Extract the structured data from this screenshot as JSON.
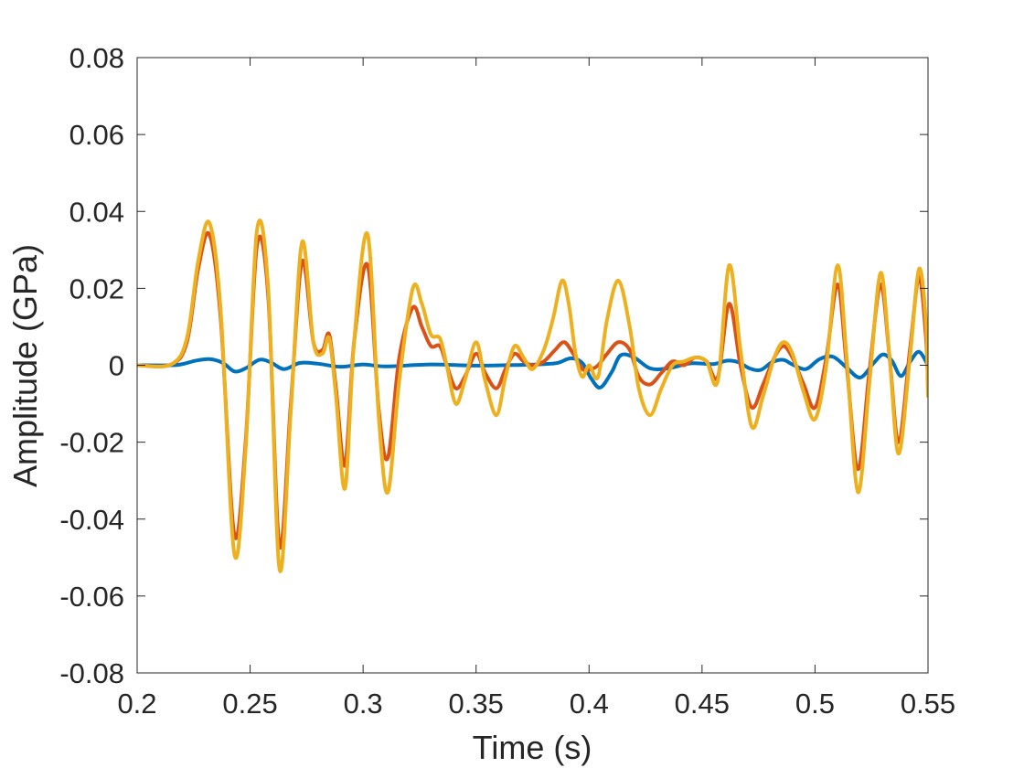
{
  "chart_data": {
    "type": "line",
    "title": "",
    "xlabel": "Time (s)",
    "ylabel": "Amplitude (GPa)",
    "xlim": [
      0.2,
      0.55
    ],
    "ylim": [
      -0.08,
      0.08
    ],
    "xticks": [
      0.2,
      0.25,
      0.3,
      0.35,
      0.4,
      0.45,
      0.5,
      0.55
    ],
    "xtick_labels": [
      "0.2",
      "0.25",
      "0.3",
      "0.35",
      "0.4",
      "0.45",
      "0.5",
      "0.55"
    ],
    "yticks": [
      -0.08,
      -0.06,
      -0.04,
      -0.02,
      0,
      0.02,
      0.04,
      0.06,
      0.08
    ],
    "ytick_labels": [
      "-0.08",
      "-0.06",
      "-0.04",
      "-0.02",
      "0",
      "0.02",
      "0.04",
      "0.06",
      "0.08"
    ],
    "grid": false,
    "legend": "none",
    "colors": [
      "#0072BD",
      "#D95319",
      "#EDB120"
    ],
    "series": [
      {
        "color": "#0072BD",
        "x": [
          0.2,
          0.215,
          0.22,
          0.226,
          0.232,
          0.238,
          0.243,
          0.248,
          0.254,
          0.259,
          0.265,
          0.272,
          0.28,
          0.29,
          0.3,
          0.31,
          0.33,
          0.35,
          0.37,
          0.38,
          0.386,
          0.392,
          0.397,
          0.401,
          0.405,
          0.41,
          0.414,
          0.42,
          0.427,
          0.435,
          0.445,
          0.455,
          0.461,
          0.466,
          0.471,
          0.476,
          0.481,
          0.486,
          0.49,
          0.496,
          0.502,
          0.508,
          0.514,
          0.52,
          0.526,
          0.53,
          0.534,
          0.538,
          0.542,
          0.546,
          0.55
        ],
        "y": [
          0,
          0,
          0.0003,
          0.0012,
          0.0016,
          0.0006,
          -0.0016,
          -0.0008,
          0.0014,
          0.0008,
          -0.001,
          0.0006,
          0.0004,
          -0.0004,
          0.0002,
          -0.0003,
          0.0002,
          -0.0001,
          0.0001,
          0.0003,
          0.0006,
          0.0018,
          0.0006,
          -0.0035,
          -0.0058,
          -0.0018,
          0.0026,
          0.002,
          -0.0008,
          -0.0008,
          0.0005,
          0.0003,
          0.0012,
          0.0008,
          -0.0008,
          -0.0012,
          0.0008,
          0.0014,
          0.0002,
          -0.001,
          0.0016,
          0.0022,
          -0.0006,
          -0.0032,
          0.0006,
          0.0028,
          0.0012,
          -0.0028,
          0.0008,
          0.0035,
          0
        ]
      },
      {
        "color": "#D95319",
        "x": [
          0.2,
          0.215,
          0.222,
          0.227,
          0.232,
          0.237,
          0.243,
          0.248,
          0.253,
          0.258,
          0.263,
          0.268,
          0.273,
          0.278,
          0.282,
          0.285,
          0.288,
          0.292,
          0.296,
          0.302,
          0.307,
          0.311,
          0.316,
          0.322,
          0.326,
          0.33,
          0.334,
          0.337,
          0.341,
          0.345,
          0.35,
          0.354,
          0.359,
          0.363,
          0.367,
          0.371,
          0.375,
          0.38,
          0.385,
          0.389,
          0.393,
          0.397,
          0.401,
          0.404,
          0.408,
          0.413,
          0.418,
          0.422,
          0.427,
          0.432,
          0.437,
          0.442,
          0.447,
          0.452,
          0.457,
          0.462,
          0.467,
          0.472,
          0.477,
          0.482,
          0.486,
          0.49,
          0.495,
          0.5,
          0.505,
          0.51,
          0.514,
          0.519,
          0.524,
          0.529,
          0.533,
          0.537,
          0.542,
          0.546,
          0.549,
          0.55
        ],
        "y": [
          0,
          0.0002,
          0.006,
          0.025,
          0.034,
          0.012,
          -0.044,
          -0.02,
          0.031,
          0.018,
          -0.047,
          -0.01,
          0.027,
          0.006,
          0.004,
          0.008,
          -0.006,
          -0.026,
          0.006,
          0.026,
          -0.012,
          -0.024,
          0.002,
          0.015,
          0.01,
          0.005,
          0.005,
          0.0,
          -0.006,
          -0.003,
          0.003,
          -0.002,
          -0.006,
          -0.001,
          0.003,
          0.001,
          0.0,
          0.001,
          0.004,
          0.006,
          0.003,
          -0.001,
          -0.001,
          0.0,
          0.003,
          0.006,
          0.004,
          -0.003,
          -0.005,
          -0.002,
          0.001,
          0.0,
          0.002,
          0.001,
          -0.003,
          0.016,
          0.0,
          -0.011,
          -0.005,
          0.002,
          0.005,
          0.002,
          -0.005,
          -0.011,
          0.002,
          0.021,
          0.0,
          -0.027,
          -0.002,
          0.021,
          0.002,
          -0.02,
          0.004,
          0.023,
          0.008,
          -0.005
        ]
      },
      {
        "color": "#EDB120",
        "x": [
          0.2,
          0.215,
          0.222,
          0.227,
          0.232,
          0.237,
          0.243,
          0.248,
          0.253,
          0.258,
          0.263,
          0.268,
          0.273,
          0.278,
          0.282,
          0.285,
          0.288,
          0.292,
          0.296,
          0.302,
          0.307,
          0.311,
          0.316,
          0.322,
          0.326,
          0.33,
          0.334,
          0.337,
          0.341,
          0.345,
          0.35,
          0.354,
          0.359,
          0.363,
          0.367,
          0.371,
          0.375,
          0.38,
          0.384,
          0.388,
          0.391,
          0.394,
          0.397,
          0.4,
          0.404,
          0.408,
          0.413,
          0.418,
          0.422,
          0.427,
          0.432,
          0.437,
          0.442,
          0.447,
          0.452,
          0.457,
          0.462,
          0.467,
          0.472,
          0.477,
          0.482,
          0.486,
          0.49,
          0.495,
          0.5,
          0.505,
          0.51,
          0.514,
          0.519,
          0.524,
          0.529,
          0.533,
          0.537,
          0.542,
          0.546,
          0.549,
          0.55
        ],
        "y": [
          0,
          0.0002,
          0.007,
          0.027,
          0.037,
          0.014,
          -0.049,
          -0.022,
          0.035,
          0.02,
          -0.053,
          -0.012,
          0.032,
          0.006,
          0.003,
          0.007,
          -0.008,
          -0.032,
          0.006,
          0.034,
          -0.014,
          -0.033,
          -0.004,
          0.02,
          0.016,
          0.008,
          0.007,
          0.0,
          -0.01,
          -0.004,
          0.006,
          -0.004,
          -0.013,
          -0.003,
          0.005,
          0.002,
          -0.001,
          0.004,
          0.012,
          0.022,
          0.016,
          0.003,
          -0.003,
          0.0,
          -0.003,
          0.012,
          0.022,
          0.01,
          -0.006,
          -0.013,
          -0.006,
          0.0,
          0.001,
          0.002,
          0.001,
          -0.004,
          0.026,
          0.004,
          -0.016,
          -0.008,
          0.002,
          0.006,
          0.003,
          -0.007,
          -0.014,
          0.0,
          0.026,
          0.002,
          -0.033,
          -0.005,
          0.024,
          0.002,
          -0.023,
          0.002,
          0.025,
          0.012,
          -0.008
        ]
      }
    ]
  }
}
